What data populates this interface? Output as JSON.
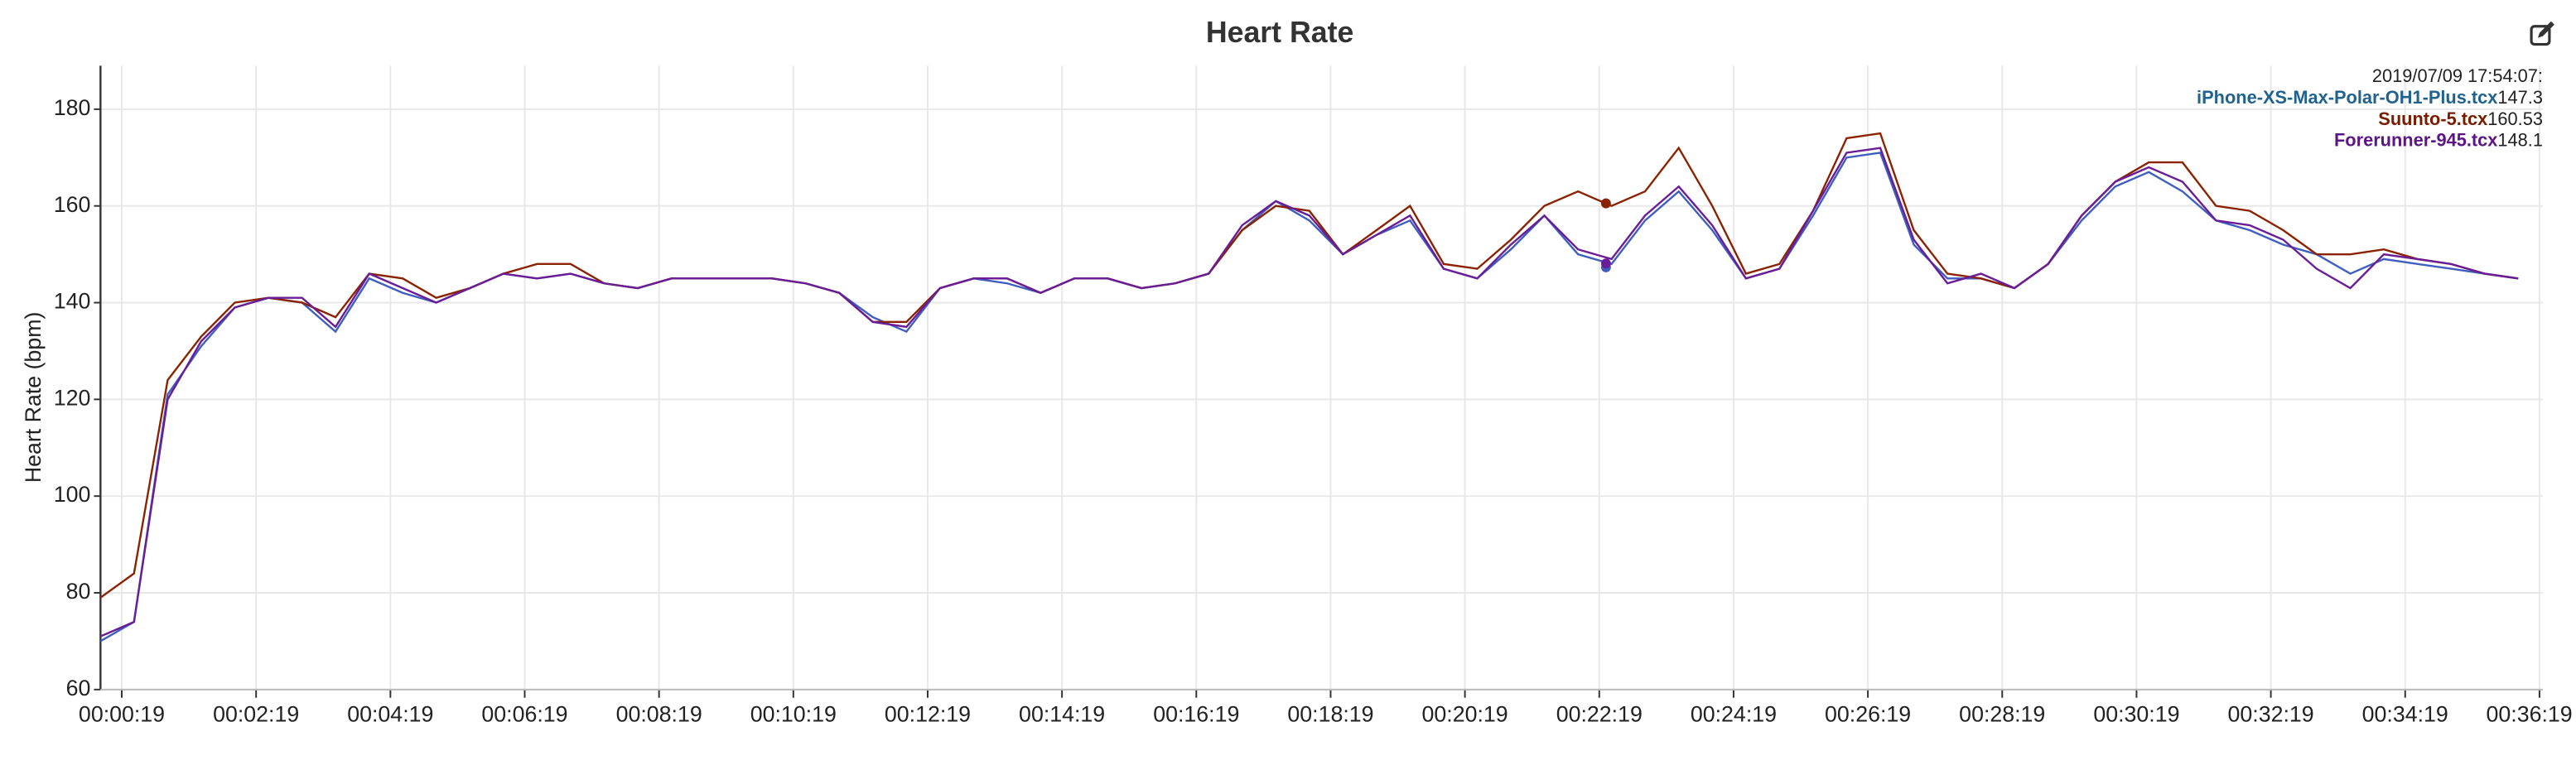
{
  "chart_data": {
    "type": "line",
    "title": "Heart Rate",
    "ylabel": "Heart Rate (bpm)",
    "xlim": [
      0,
      2182
    ],
    "ylim": [
      60,
      189
    ],
    "xticks": [
      {
        "value": 19,
        "label": "00:00:19"
      },
      {
        "value": 139,
        "label": "00:02:19"
      },
      {
        "value": 259,
        "label": "00:04:19"
      },
      {
        "value": 379,
        "label": "00:06:19"
      },
      {
        "value": 499,
        "label": "00:08:19"
      },
      {
        "value": 619,
        "label": "00:10:19"
      },
      {
        "value": 739,
        "label": "00:12:19"
      },
      {
        "value": 859,
        "label": "00:14:19"
      },
      {
        "value": 979,
        "label": "00:16:19"
      },
      {
        "value": 1099,
        "label": "00:18:19"
      },
      {
        "value": 1219,
        "label": "00:20:19"
      },
      {
        "value": 1339,
        "label": "00:22:19"
      },
      {
        "value": 1459,
        "label": "00:24:19"
      },
      {
        "value": 1579,
        "label": "00:26:19"
      },
      {
        "value": 1699,
        "label": "00:28:19"
      },
      {
        "value": 1819,
        "label": "00:30:19"
      },
      {
        "value": 1939,
        "label": "00:32:19"
      },
      {
        "value": 2059,
        "label": "00:34:19"
      },
      {
        "value": 2179,
        "label": "00:36:19"
      }
    ],
    "yticks": [
      60,
      80,
      100,
      120,
      140,
      160,
      180
    ],
    "grid": true,
    "x": [
      0,
      30,
      60,
      90,
      120,
      150,
      180,
      210,
      240,
      270,
      300,
      330,
      360,
      390,
      420,
      450,
      480,
      510,
      540,
      570,
      600,
      630,
      660,
      690,
      720,
      750,
      780,
      810,
      840,
      870,
      900,
      930,
      960,
      990,
      1020,
      1050,
      1080,
      1110,
      1140,
      1170,
      1200,
      1230,
      1260,
      1290,
      1320,
      1350,
      1380,
      1410,
      1440,
      1470,
      1500,
      1530,
      1560,
      1590,
      1620,
      1650,
      1680,
      1710,
      1740,
      1770,
      1800,
      1830,
      1860,
      1890,
      1920,
      1950,
      1980,
      2010,
      2040,
      2070,
      2100,
      2130,
      2160
    ],
    "series": [
      {
        "name": "iPhone-XS-Max-Polar-OH1-Plus.tcx",
        "color": "#3f5fc0",
        "label_color": "#21628f",
        "values": [
          70,
          74,
          121,
          131,
          139,
          141,
          140,
          134,
          145,
          142,
          140,
          143,
          146,
          145,
          146,
          144,
          143,
          145,
          145,
          145,
          145,
          144,
          142,
          137,
          134,
          143,
          145,
          144,
          142,
          145,
          145,
          143,
          144,
          146,
          155,
          161,
          157,
          150,
          154,
          157,
          147,
          145,
          151,
          158,
          150,
          148,
          157,
          163,
          155,
          145,
          147,
          158,
          170,
          171,
          152,
          145,
          145,
          143,
          148,
          157,
          164,
          167,
          163,
          157,
          155,
          152,
          150,
          146,
          149,
          148,
          147,
          146,
          145
        ]
      },
      {
        "name": "Suunto-5.tcx",
        "color": "#8b2200",
        "label_color": "#7a1c00",
        "values": [
          79,
          84,
          124,
          133,
          140,
          141,
          140,
          137,
          146,
          145,
          141,
          143,
          146,
          148,
          148,
          144,
          143,
          145,
          145,
          145,
          145,
          144,
          142,
          136,
          136,
          143,
          145,
          145,
          142,
          145,
          145,
          143,
          144,
          146,
          155,
          160,
          159,
          150,
          155,
          160,
          148,
          147,
          153,
          160,
          163,
          160,
          163,
          172,
          160,
          146,
          148,
          159,
          174,
          175,
          155,
          146,
          145,
          143,
          148,
          158,
          165,
          169,
          169,
          160,
          159,
          155,
          150,
          150,
          151,
          149,
          148,
          146,
          145
        ]
      },
      {
        "name": "Forerunner-945.tcx",
        "color": "#6a1d96",
        "label_color": "#5c1585",
        "values": [
          71,
          74,
          120,
          132,
          139,
          141,
          141,
          135,
          146,
          143,
          140,
          143,
          146,
          145,
          146,
          144,
          143,
          145,
          145,
          145,
          145,
          144,
          142,
          136,
          135,
          143,
          145,
          145,
          142,
          145,
          145,
          143,
          144,
          146,
          156,
          161,
          158,
          150,
          154,
          158,
          147,
          145,
          152,
          158,
          151,
          149,
          158,
          164,
          156,
          145,
          147,
          159,
          171,
          172,
          153,
          144,
          146,
          143,
          148,
          158,
          165,
          168,
          165,
          157,
          156,
          153,
          147,
          143,
          150,
          149,
          148,
          146,
          145
        ]
      }
    ],
    "tooltip": {
      "title": "2019/07/09 17:54:07:",
      "x": 1345,
      "values": [
        147.3,
        160.53,
        148.1
      ]
    }
  }
}
